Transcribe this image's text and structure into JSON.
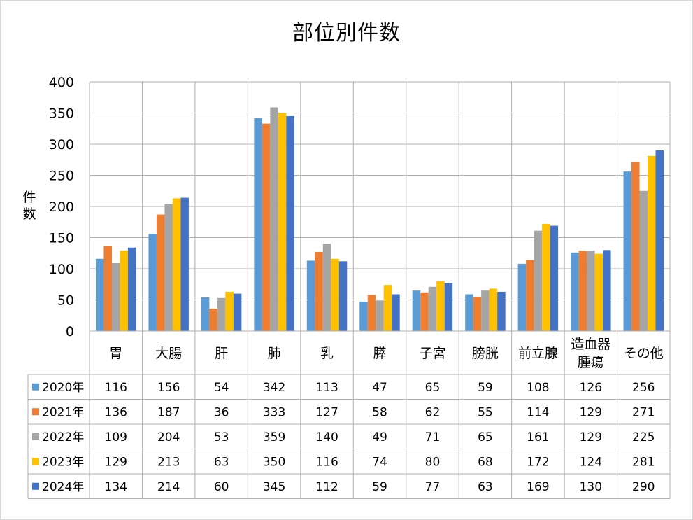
{
  "chart_data": {
    "type": "bar",
    "title": "部位別件数",
    "ylabel": "件数",
    "xlabel": "",
    "ylim": [
      0,
      400
    ],
    "yticks": [
      0,
      50,
      100,
      150,
      200,
      250,
      300,
      350,
      400
    ],
    "grid": true,
    "legend": "data-table",
    "categories": [
      {
        "lines": [
          "胃"
        ]
      },
      {
        "lines": [
          "大腸"
        ]
      },
      {
        "lines": [
          "肝"
        ]
      },
      {
        "lines": [
          "肺"
        ]
      },
      {
        "lines": [
          "乳"
        ]
      },
      {
        "lines": [
          "膵"
        ]
      },
      {
        "lines": [
          "子宮"
        ]
      },
      {
        "lines": [
          "膀胱"
        ]
      },
      {
        "lines": [
          "前立腺"
        ]
      },
      {
        "lines": [
          "造血器",
          "腫瘍"
        ]
      },
      {
        "lines": [
          "その他"
        ]
      }
    ],
    "series": [
      {
        "name": "2020年",
        "color": "#5B9BD5",
        "values": [
          116,
          156,
          54,
          342,
          113,
          47,
          65,
          59,
          108,
          126,
          256
        ]
      },
      {
        "name": "2021年",
        "color": "#ED7D31",
        "values": [
          136,
          187,
          36,
          333,
          127,
          58,
          62,
          55,
          114,
          129,
          271
        ]
      },
      {
        "name": "2022年",
        "color": "#A5A5A5",
        "values": [
          109,
          204,
          53,
          359,
          140,
          49,
          71,
          65,
          161,
          129,
          225
        ]
      },
      {
        "name": "2023年",
        "color": "#FFC000",
        "values": [
          129,
          213,
          63,
          350,
          116,
          74,
          80,
          68,
          172,
          124,
          281
        ]
      },
      {
        "name": "2024年",
        "color": "#4472C4",
        "values": [
          134,
          214,
          60,
          345,
          112,
          59,
          77,
          63,
          169,
          130,
          290
        ]
      }
    ]
  }
}
